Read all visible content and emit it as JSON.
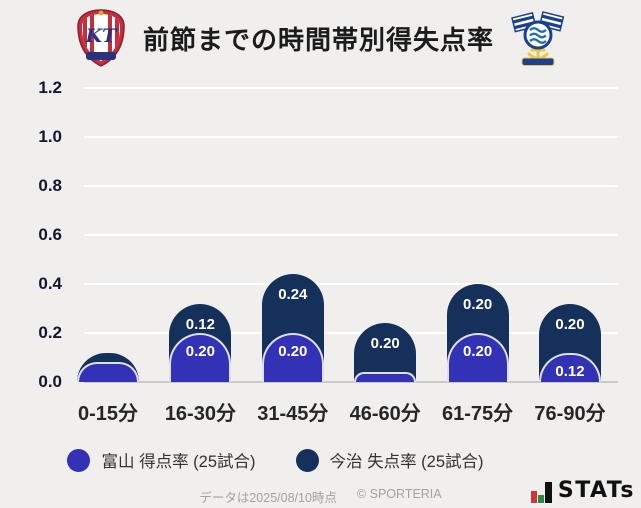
{
  "header": {
    "left_crest": "kataller-toyama-crest",
    "right_crest": "fc-imabari-crest"
  },
  "chart_data": {
    "type": "bar",
    "subtype": "stacked-rounded-columns",
    "title": "前節までの時間帯別得失点率",
    "categories": [
      "0-15分",
      "16-30分",
      "31-45分",
      "46-60分",
      "61-75分",
      "76-90分"
    ],
    "series": [
      {
        "name": "富山 得点率 (25試合)",
        "role": "front-bottom-segment",
        "color": "#3331b5",
        "values": [
          0.08,
          0.2,
          0.2,
          0.04,
          0.2,
          0.12
        ],
        "value_labels": [
          "",
          "0.20",
          "0.20",
          "",
          "0.20",
          "0.12"
        ]
      },
      {
        "name": "今治 失点率 (25試合)",
        "role": "back-top-segment",
        "color": "#15305b",
        "values": [
          0.04,
          0.12,
          0.24,
          0.2,
          0.2,
          0.2
        ],
        "value_labels": [
          "",
          "0.12",
          "0.24",
          "0.20",
          "0.20",
          "0.20"
        ]
      }
    ],
    "ylim": [
      0,
      1.2
    ],
    "yticks": [
      0.0,
      0.2,
      0.4,
      0.6,
      0.8,
      1.0,
      1.2
    ],
    "ytick_format": "one-decimal",
    "grid": true,
    "gridline_color": "#ffffff",
    "baseline_color": "#c9c9c9",
    "background_color": "#f0efed",
    "value_label_color": "#ffffff",
    "legend_position": "bottom"
  },
  "footer": {
    "data_note": "データは2025/08/10時点",
    "copyright": "© SPORTERIA",
    "logo_text": "STATs"
  }
}
